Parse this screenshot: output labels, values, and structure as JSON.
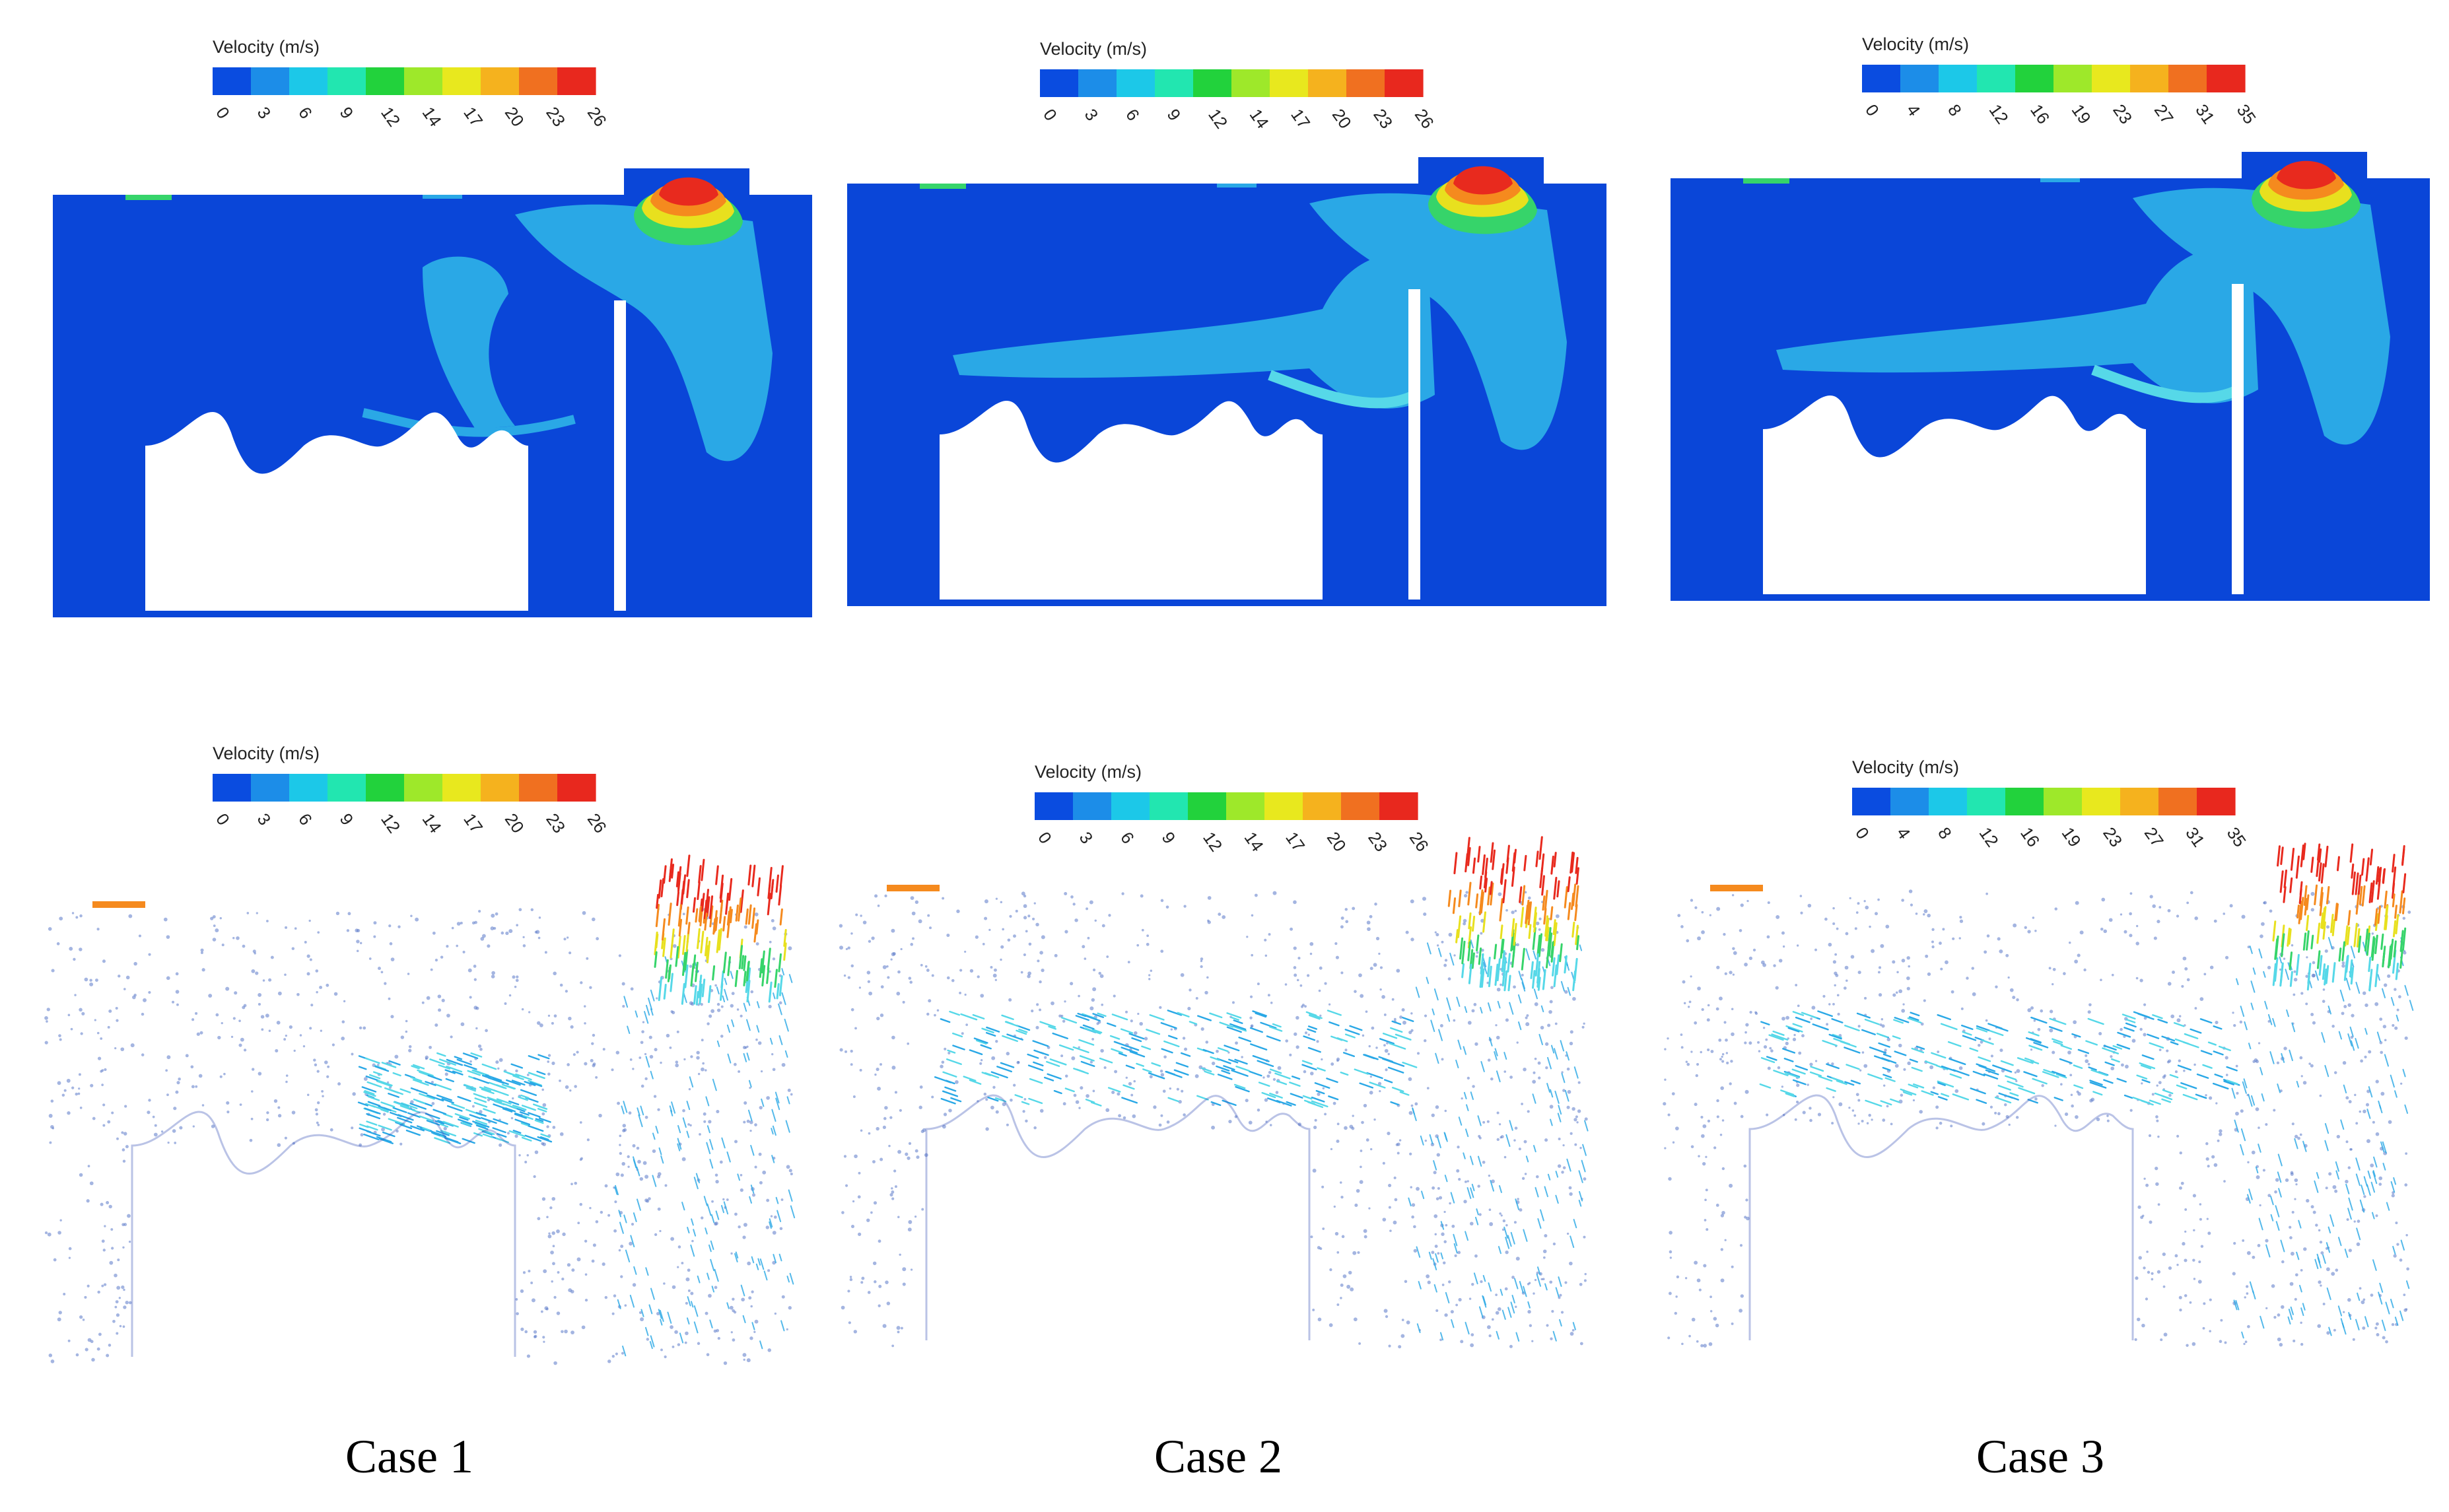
{
  "colorbar_colors": [
    "#0a4ce0",
    "#1c8de8",
    "#1cc8e8",
    "#22e6b0",
    "#22d23c",
    "#9ee82a",
    "#e8e81e",
    "#f5b21e",
    "#f07020",
    "#e8281e"
  ],
  "legend_title": "Velocity (m/s)",
  "cases": [
    {
      "label": "Case 1",
      "contour_ticks": [
        "0",
        "3",
        "6",
        "9",
        "12",
        "14",
        "17",
        "20",
        "23",
        "26"
      ],
      "vector_ticks": [
        "0",
        "3",
        "6",
        "9",
        "12",
        "14",
        "17",
        "20",
        "23",
        "26"
      ]
    },
    {
      "label": "Case 2",
      "contour_ticks": [
        "0",
        "3",
        "6",
        "9",
        "12",
        "14",
        "17",
        "20",
        "23",
        "26"
      ],
      "vector_ticks": [
        "0",
        "3",
        "6",
        "9",
        "12",
        "14",
        "17",
        "20",
        "23",
        "26"
      ]
    },
    {
      "label": "Case 3",
      "contour_ticks": [
        "0",
        "4",
        "8",
        "12",
        "16",
        "19",
        "23",
        "27",
        "31",
        "35"
      ],
      "vector_ticks": [
        "0",
        "4",
        "8",
        "12",
        "16",
        "19",
        "23",
        "27",
        "31",
        "35"
      ]
    }
  ],
  "colors": {
    "field_blue": "#0a46d8",
    "mid_cyan": "#2aa8e6",
    "light_cyan": "#56d8e8",
    "hot_red": "#e82a1e",
    "hot_orange": "#f58a1e",
    "hot_yellow": "#e8e01e",
    "hot_green": "#36d46a",
    "sparse_dot": "#5a78c8"
  }
}
